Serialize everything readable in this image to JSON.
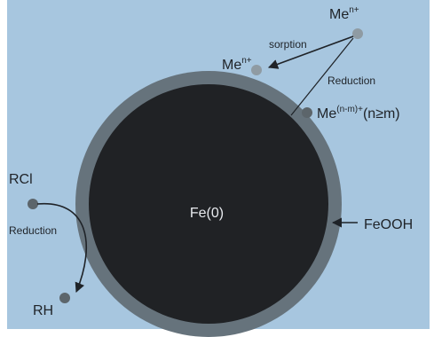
{
  "labels": {
    "core": "Fe(0)",
    "shell": "FeOOH",
    "rcl": "RCl",
    "rh": "RH",
    "reduction_left": "Reduction",
    "reduction_right": "Reduction",
    "sorption": "sorption",
    "me_top_base": "Me",
    "me_top_sup": "n+",
    "me_mid_base": "Me",
    "me_mid_sup": "n+",
    "me_bottom_base": "Me",
    "me_bottom_sup": "(n-m)+",
    "me_bottom_suffix": "(n≥m)"
  },
  "colors": {
    "background": "#a7c6df",
    "border": "#ffffff",
    "shell": "#66737c",
    "core": "#202225",
    "dot": "#5c656b",
    "dot_light": "#8f9ba3",
    "line": "#1f2328"
  }
}
